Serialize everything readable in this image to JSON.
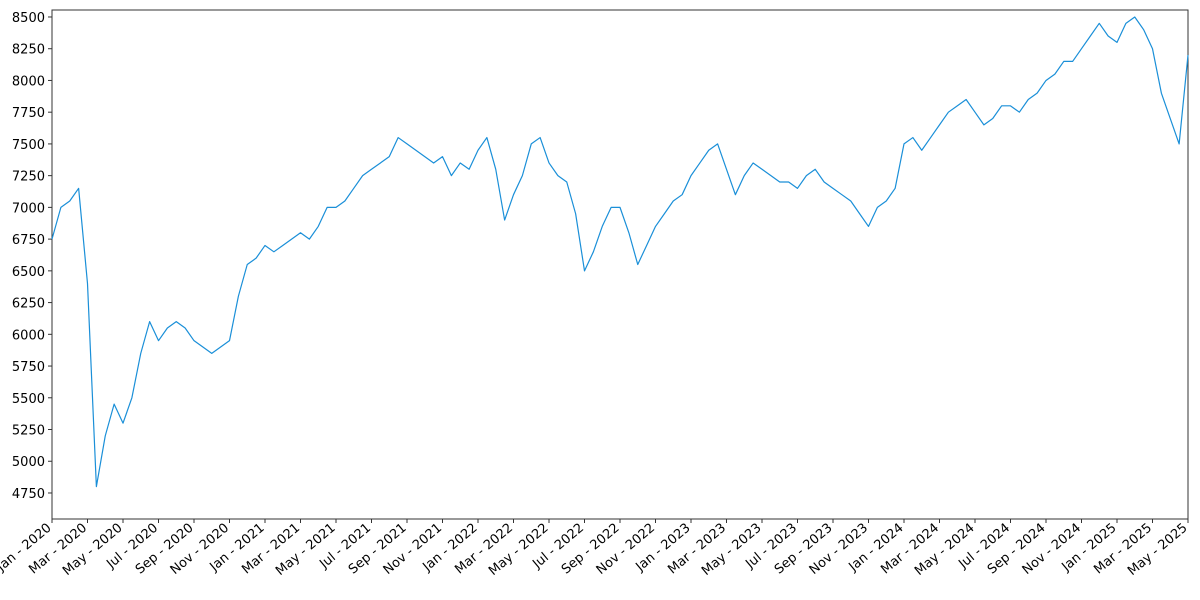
{
  "chart_data": {
    "type": "line",
    "categories": [
      "Jan - 2020",
      null,
      null,
      null,
      "Mar - 2020",
      null,
      null,
      null,
      "May - 2020",
      null,
      null,
      null,
      "Jul - 2020",
      null,
      null,
      null,
      "Sep - 2020",
      null,
      null,
      null,
      "Nov - 2020",
      null,
      null,
      null,
      "Jan - 2021",
      null,
      null,
      null,
      "Mar - 2021",
      null,
      null,
      null,
      "May - 2021",
      null,
      null,
      null,
      "Jul - 2021",
      null,
      null,
      null,
      "Sep - 2021",
      null,
      null,
      null,
      "Nov - 2021",
      null,
      null,
      null,
      "Jan - 2022",
      null,
      null,
      null,
      "Mar - 2022",
      null,
      null,
      null,
      "May - 2022",
      null,
      null,
      null,
      "Jul - 2022",
      null,
      null,
      null,
      "Sep - 2022",
      null,
      null,
      null,
      "Nov - 2022",
      null,
      null,
      null,
      "Jan - 2023",
      null,
      null,
      null,
      "Mar - 2023",
      null,
      null,
      null,
      "May - 2023",
      null,
      null,
      null,
      "Jul - 2023",
      null,
      null,
      null,
      "Sep - 2023",
      null,
      null,
      null,
      "Nov - 2023",
      null,
      null,
      null,
      "Jan - 2024",
      null,
      null,
      null,
      "Mar - 2024",
      null,
      null,
      null,
      "May - 2024",
      null,
      null,
      null,
      "Jul - 2024",
      null,
      null,
      null,
      "Sep - 2024",
      null,
      null,
      null,
      "Nov - 2024",
      null,
      null,
      null,
      "Jan - 2025",
      null,
      null,
      null,
      "Mar - 2025",
      null,
      null,
      null,
      "May - 2025"
    ],
    "series": [
      {
        "color": "#1a8fd8",
        "values": [
          6750,
          7000,
          7050,
          7150,
          6400,
          4800,
          5200,
          5450,
          5300,
          5500,
          5850,
          6100,
          5950,
          6050,
          6100,
          6050,
          5950,
          5900,
          5850,
          5900,
          5950,
          6300,
          6550,
          6600,
          6700,
          6650,
          6700,
          6750,
          6800,
          6750,
          6850,
          7000,
          7000,
          7050,
          7150,
          7250,
          7300,
          7350,
          7400,
          7550,
          7500,
          7450,
          7400,
          7350,
          7400,
          7250,
          7350,
          7300,
          7450,
          7550,
          7300,
          6900,
          7100,
          7250,
          7500,
          7550,
          7350,
          7250,
          7200,
          6950,
          6500,
          6650,
          6850,
          7000,
          7000,
          6800,
          6550,
          6700,
          6850,
          6950,
          7050,
          7100,
          7250,
          7350,
          7450,
          7500,
          7300,
          7100,
          7250,
          7350,
          7300,
          7250,
          7200,
          7200,
          7150,
          7250,
          7300,
          7200,
          7150,
          7100,
          7050,
          6950,
          6850,
          7000,
          7050,
          7150,
          7500,
          7550,
          7450,
          7550,
          7650,
          7750,
          7800,
          7850,
          7750,
          7650,
          7700,
          7800,
          7800,
          7750,
          7850,
          7900,
          8000,
          8050,
          8150,
          8150,
          8250,
          8350,
          8450,
          8350,
          8300,
          8450,
          8500,
          8400,
          8250,
          7900,
          7700,
          7500,
          8200
        ]
      }
    ],
    "ylim": [
      4545,
      8555
    ],
    "yticks": [
      4750,
      5000,
      5250,
      5500,
      5750,
      6000,
      6250,
      6500,
      6750,
      7000,
      7250,
      7500,
      7750,
      8000,
      8250,
      8500
    ]
  }
}
